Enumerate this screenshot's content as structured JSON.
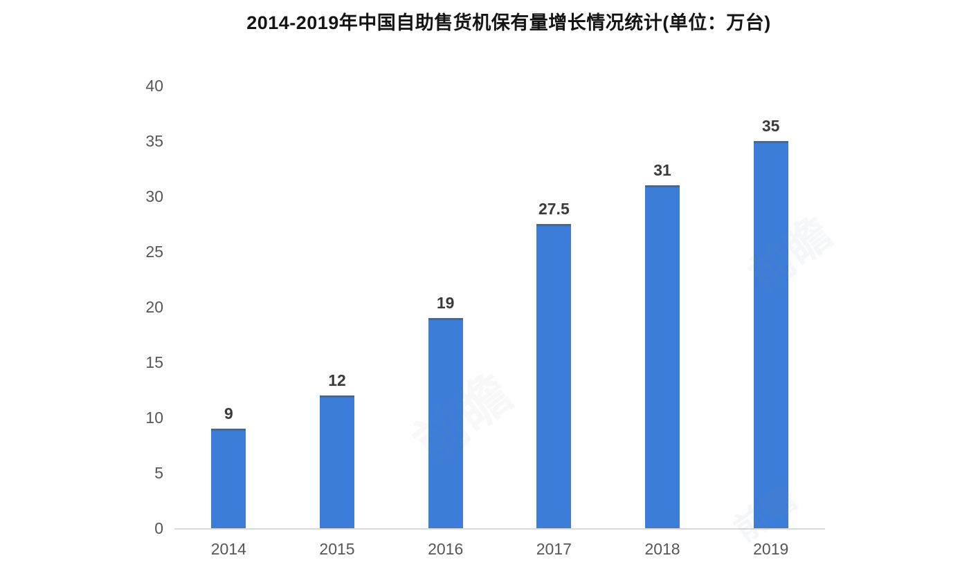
{
  "chart_data": {
    "type": "bar",
    "title": "2014-2019年中国自助售货机保有量增长情况统计(单位：万台)",
    "categories": [
      "2014",
      "2015",
      "2016",
      "2017",
      "2018",
      "2019"
    ],
    "values": [
      9,
      12,
      19,
      27.5,
      31,
      35
    ],
    "value_labels": [
      "9",
      "12",
      "19",
      "27.5",
      "31",
      "35"
    ],
    "xlabel": "",
    "ylabel": "",
    "ylim": [
      0,
      40
    ],
    "yticks": [
      0,
      5,
      10,
      15,
      20,
      25,
      30,
      35,
      40
    ],
    "grid": false,
    "legend_position": "none",
    "bar_color": "#3b7dd8",
    "bar_top_edge_color": "#59646f",
    "axis_line_color": "#d9d9d9",
    "tick_label_color": "#565656",
    "value_label_color": "#3a3a3a",
    "title_color": "#141414"
  },
  "watermark": {
    "text": "前瞻"
  }
}
